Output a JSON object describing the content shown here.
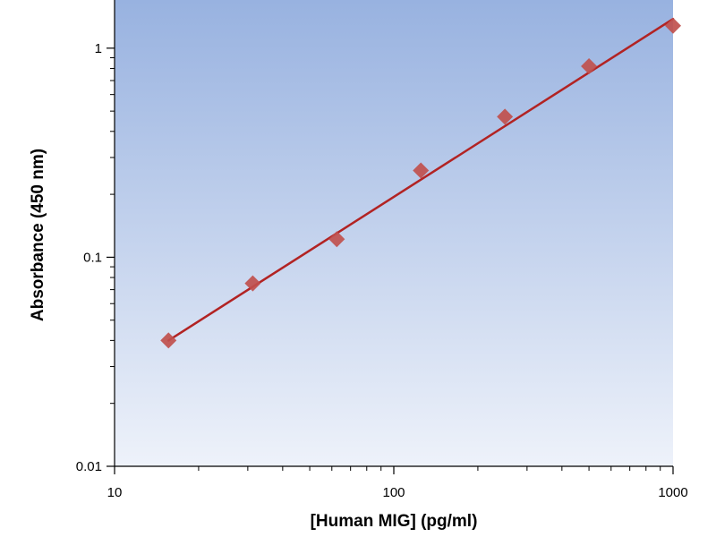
{
  "chart_data": {
    "type": "scatter",
    "title": "",
    "xlabel": "[Human MIG] (pg/ml)",
    "ylabel": "Absorbance (450 nm)",
    "x_scale": "log",
    "y_scale": "log",
    "xlim": [
      10,
      1000
    ],
    "ylim": [
      0.01,
      1.7
    ],
    "x_ticks": [
      10,
      100,
      1000
    ],
    "x_tick_labels": [
      "10",
      "100",
      "1000"
    ],
    "y_ticks": [
      0.01,
      0.1,
      1
    ],
    "y_tick_labels": [
      "0.01",
      "0.1",
      "1"
    ],
    "grid": false,
    "legend": "none",
    "series": [
      {
        "marker": "diamond",
        "x": [
          15.6,
          31.25,
          62.5,
          125,
          250,
          500,
          1000
        ],
        "y": [
          0.04,
          0.075,
          0.122,
          0.26,
          0.47,
          0.82,
          1.28
        ],
        "fit": {
          "type": "line",
          "x": [
            15.6,
            1000
          ],
          "y": [
            0.04,
            1.38
          ]
        }
      }
    ],
    "colors": {
      "marker": "#c0504d",
      "line": "#b22323",
      "plot_bg_top": "#98b2e0",
      "plot_bg_bottom": "#eef2fa",
      "axis": "#000000"
    }
  }
}
